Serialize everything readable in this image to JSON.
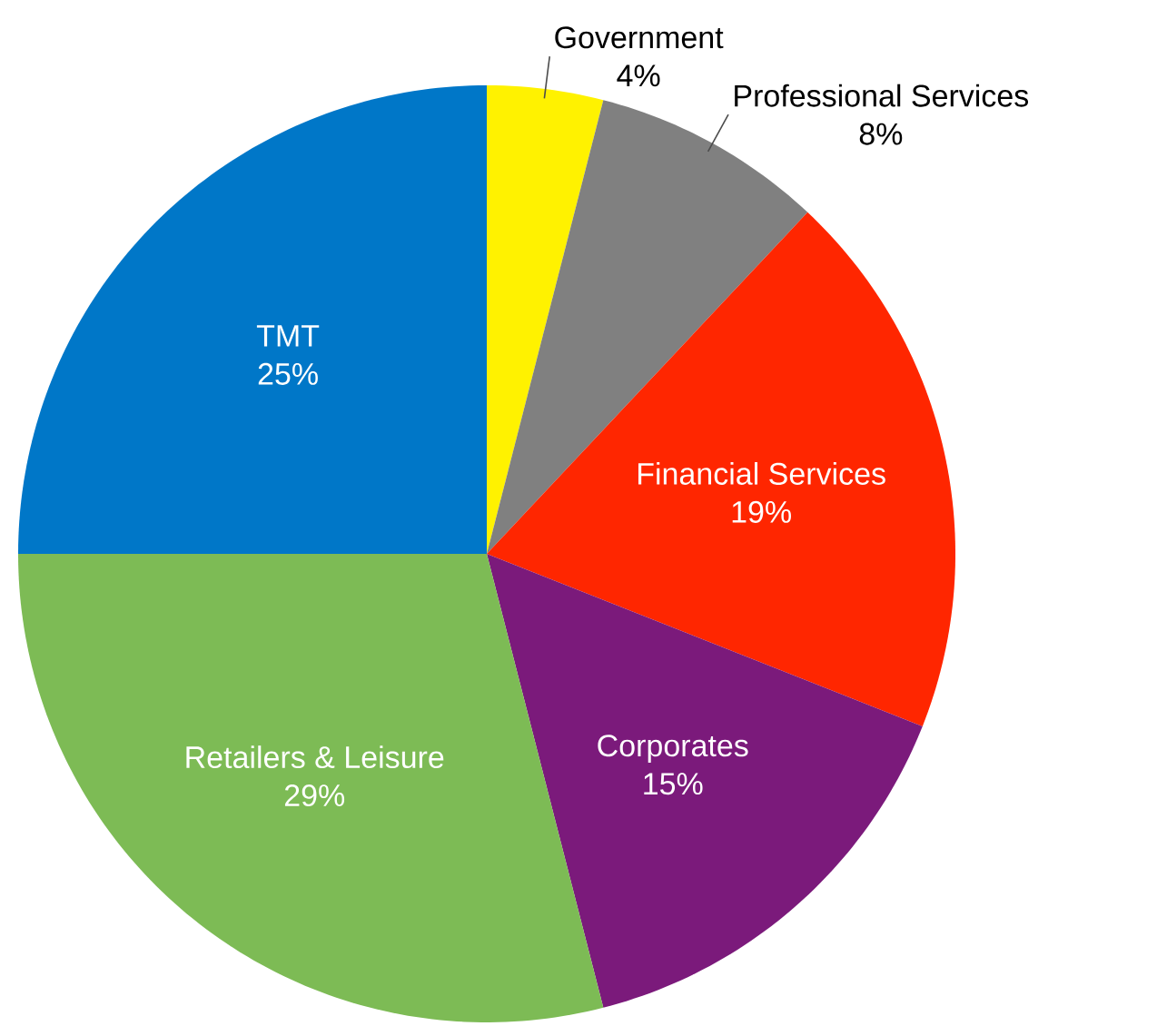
{
  "chart_data": {
    "type": "pie",
    "categories": [
      "Government",
      "Professional Services",
      "Financial Services",
      "Corporates",
      "Retailers & Leisure",
      "TMT"
    ],
    "values": [
      4,
      8,
      19,
      15,
      29,
      25
    ],
    "value_labels": [
      "4%",
      "8%",
      "19%",
      "15%",
      "29%",
      "25%"
    ],
    "colors": [
      "#fff200",
      "#808080",
      "#ff2600",
      "#7b1a7b",
      "#7dbb55",
      "#0077c8"
    ]
  }
}
